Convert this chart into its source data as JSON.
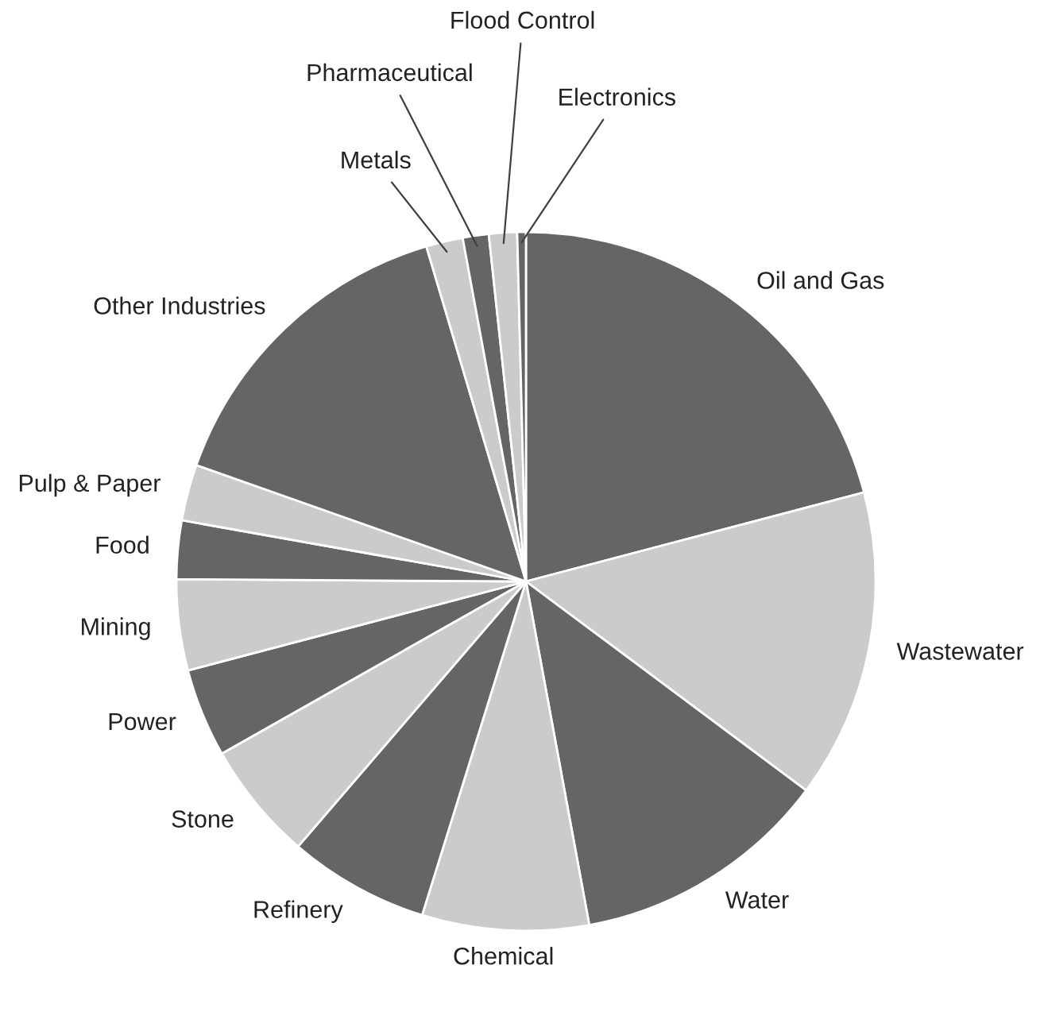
{
  "chart_data": {
    "type": "pie",
    "categories": [
      "Oil and Gas",
      "Wastewater",
      "Water",
      "Chemical",
      "Refinery",
      "Stone",
      "Power",
      "Mining",
      "Food",
      "Pulp & Paper",
      "Other Industries",
      "Metals",
      "Pharmaceutical",
      "Flood Control",
      "Electronics"
    ],
    "values": [
      20.9,
      14.3,
      11.9,
      7.7,
      6.5,
      5.5,
      4.1,
      4.2,
      2.7,
      2.6,
      15.0,
      1.7,
      1.2,
      1.3,
      0.4
    ],
    "colors": [
      "#656565",
      "#cbcbcb",
      "#656565",
      "#cbcbcb",
      "#656565",
      "#cbcbcb",
      "#656565",
      "#cbcbcb",
      "#656565",
      "#cbcbcb",
      "#656565",
      "#cbcbcb",
      "#656565",
      "#cbcbcb",
      "#656565"
    ]
  }
}
